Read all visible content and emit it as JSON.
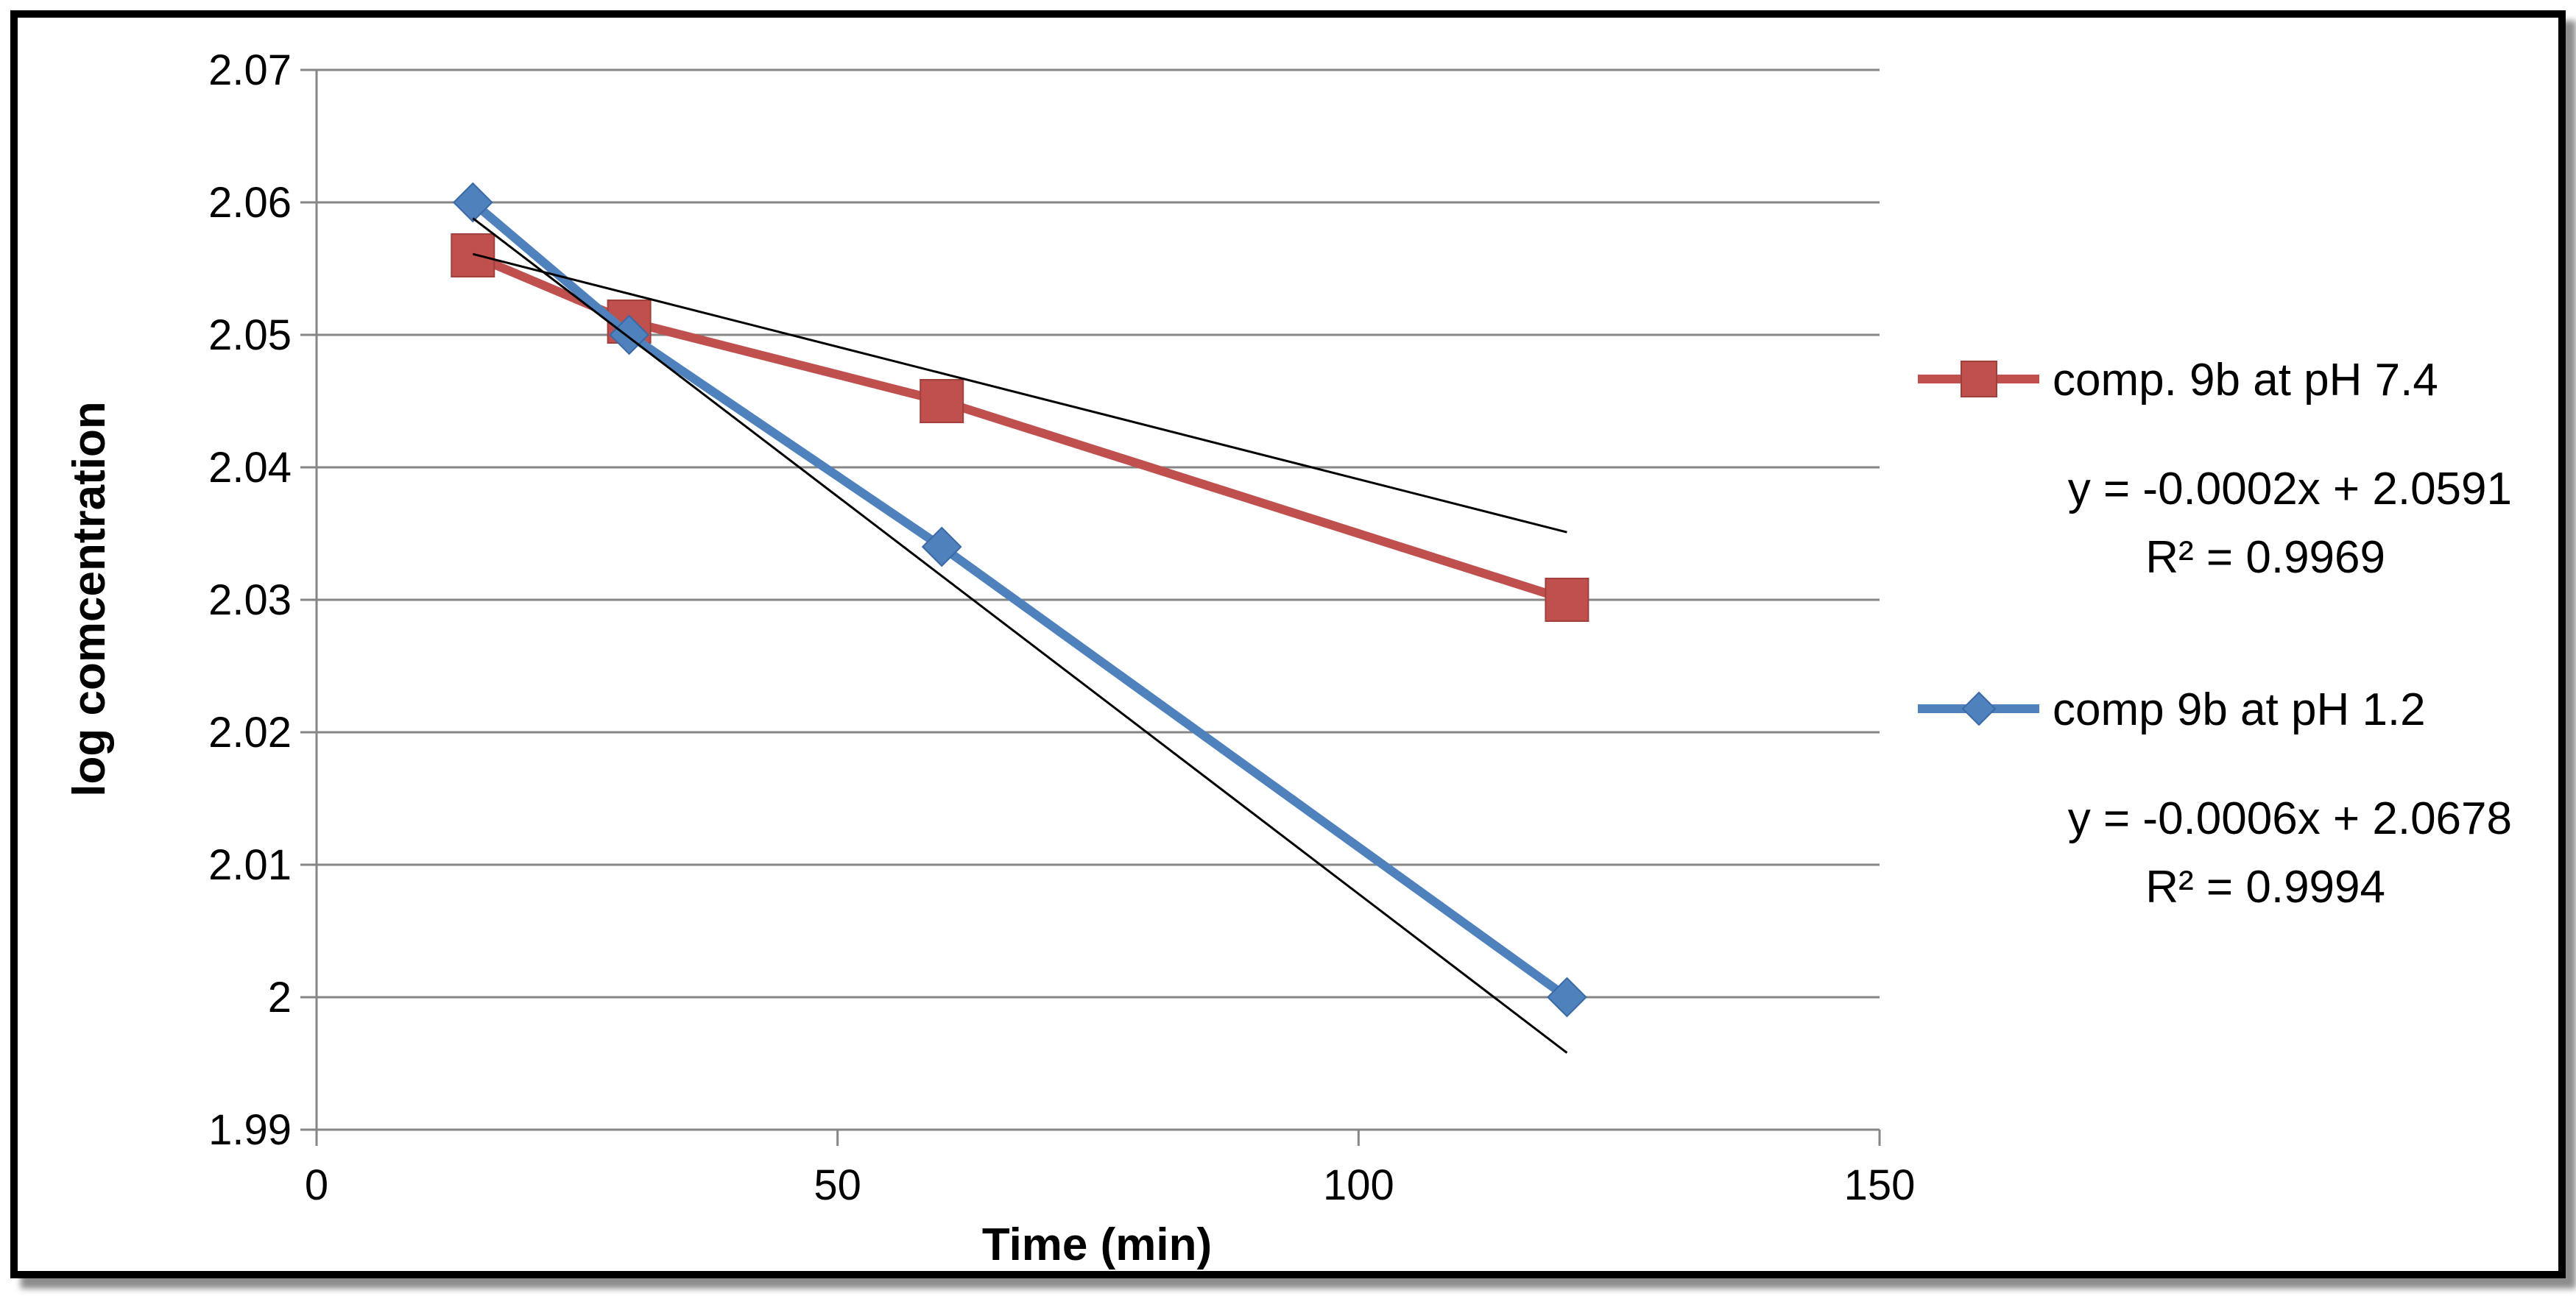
{
  "chart_data": {
    "type": "scatter",
    "title": "",
    "xlabel": "Time (min)",
    "ylabel": "log comcentration",
    "xlim": [
      0,
      150
    ],
    "ylim": [
      1.99,
      2.07
    ],
    "x_ticks": [
      "0",
      "50",
      "100",
      "150"
    ],
    "y_ticks": [
      "2.07",
      "2.06",
      "2.05",
      "2.04",
      "2.03",
      "2.02",
      "2.01",
      "2",
      "1.99"
    ],
    "grid": "horizontal",
    "legend_position": "right",
    "series": [
      {
        "name": "comp. 9b at pH 7.4",
        "color": "#C0504D",
        "marker": "square",
        "x": [
          15,
          30,
          60,
          120
        ],
        "y": [
          2.056,
          2.051,
          2.045,
          2.03
        ],
        "trendline": {
          "slope": -0.0002,
          "intercept": 2.0591,
          "color": "#000000"
        },
        "equation": "y = -0.0002x + 2.0591",
        "r2": "R² = 0.9969"
      },
      {
        "name": "comp 9b at pH 1.2",
        "color": "#4F81BD",
        "marker": "diamond",
        "x": [
          15,
          30,
          60,
          120
        ],
        "y": [
          2.06,
          2.05,
          2.034,
          2.0
        ],
        "trendline": {
          "slope": -0.0006,
          "intercept": 2.0678,
          "color": "#000000"
        },
        "equation": "y = -0.0006x + 2.0678",
        "r2": "R² = 0.9994"
      }
    ]
  }
}
